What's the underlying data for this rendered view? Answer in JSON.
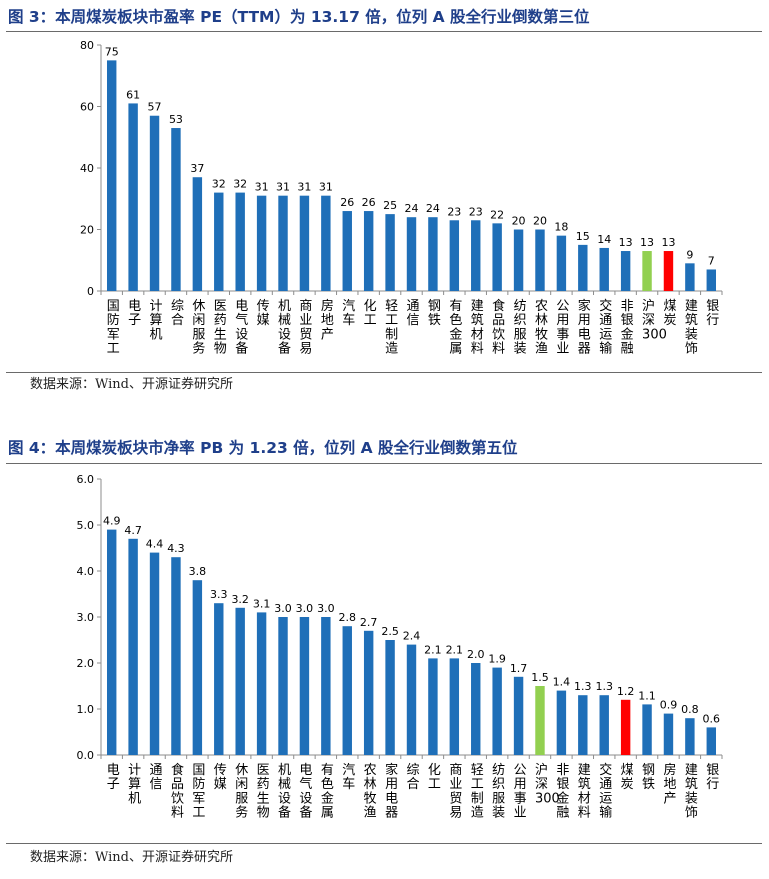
{
  "figure1": {
    "title": "图 3：本周煤炭板块市盈率 PE（TTM）为 13.17 倍，位列 A 股全行业倒数第三位",
    "source": "数据来源：Wind、开源证券研究所"
  },
  "figure2": {
    "title": "图 4：本周煤炭板块市净率 PB 为 1.23 倍，位列 A 股全行业倒数第五位",
    "source": "数据来源：Wind、开源证券研究所"
  },
  "colors": {
    "bar": "#1f6fb8",
    "benchmark": "#92d050",
    "highlight": "#ff0000",
    "axis": "#8c8c8c"
  },
  "chart_data": [
    {
      "type": "bar",
      "title": "",
      "xlabel": "",
      "ylabel": "",
      "ylim": [
        0,
        80
      ],
      "yticks": [
        "0",
        "20",
        "40",
        "60",
        "80"
      ],
      "categories": [
        "国防军工",
        "电子",
        "计算机",
        "综合",
        "休闲服务",
        "医药生物",
        "电气设备",
        "传媒",
        "机械设备",
        "商业贸易",
        "房地产",
        "汽车",
        "化工",
        "轻工制造",
        "通信",
        "钢铁",
        "有色金属",
        "建筑材料",
        "食品饮料",
        "纺织服装",
        "农林牧渔",
        "公用事业",
        "家用电器",
        "交通运输",
        "非银金融",
        "沪深300",
        "煤炭",
        "建筑装饰",
        "银行"
      ],
      "values": [
        75,
        61,
        57,
        53,
        37,
        32,
        32,
        31,
        31,
        31,
        31,
        26,
        26,
        25,
        24,
        24,
        23,
        23,
        22,
        20,
        20,
        18,
        15,
        14,
        13,
        13,
        13,
        9,
        7
      ],
      "data_labels": [
        "75",
        "61",
        "57",
        "53",
        "37",
        "32",
        "32",
        "31",
        "31",
        "31",
        "31",
        "26",
        "26",
        "25",
        "24",
        "24",
        "23",
        "23",
        "22",
        "20",
        "20",
        "18",
        "15",
        "14",
        "13",
        "13",
        "13",
        "9",
        "7"
      ],
      "special": {
        "沪深300": "benchmark",
        "煤炭": "highlight"
      },
      "legend": "none",
      "grid": false
    },
    {
      "type": "bar",
      "title": "",
      "xlabel": "",
      "ylabel": "",
      "ylim": [
        0,
        6
      ],
      "yticks": [
        "0.0",
        "1.0",
        "2.0",
        "3.0",
        "4.0",
        "5.0",
        "6.0"
      ],
      "categories": [
        "电子",
        "计算机",
        "通信",
        "食品饮料",
        "国防军工",
        "传媒",
        "休闲服务",
        "医药生物",
        "机械设备",
        "电气设备",
        "有色金属",
        "汽车",
        "农林牧渔",
        "家用电器",
        "综合",
        "化工",
        "商业贸易",
        "轻工制造",
        "纺织服装",
        "公用事业",
        "沪深300",
        "非银金融",
        "建筑材料",
        "交通运输",
        "煤炭",
        "钢铁",
        "房地产",
        "建筑装饰",
        "银行"
      ],
      "values": [
        4.9,
        4.7,
        4.4,
        4.3,
        3.8,
        3.3,
        3.2,
        3.1,
        3.0,
        3.0,
        3.0,
        2.8,
        2.7,
        2.5,
        2.4,
        2.1,
        2.1,
        2.0,
        1.9,
        1.7,
        1.5,
        1.4,
        1.3,
        1.3,
        1.2,
        1.1,
        0.9,
        0.8,
        0.6
      ],
      "data_labels": [
        "4.9",
        "4.7",
        "4.4",
        "4.3",
        "3.8",
        "3.3",
        "3.2",
        "3.1",
        "3.0",
        "3.0",
        "3.0",
        "2.8",
        "2.7",
        "2.5",
        "2.4",
        "2.1",
        "2.1",
        "2.0",
        "1.9",
        "1.7",
        "1.5",
        "1.4",
        "1.3",
        "1.3",
        "1.2",
        "1.1",
        "0.9",
        "0.8",
        "0.6"
      ],
      "special": {
        "沪深300": "benchmark",
        "煤炭": "highlight"
      },
      "legend": "none",
      "grid": false
    }
  ]
}
